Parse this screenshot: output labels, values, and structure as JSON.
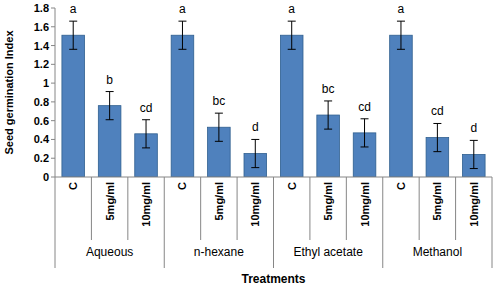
{
  "chart_data": {
    "type": "bar",
    "y_label": "Seed germination Index",
    "x_label": "Treatments",
    "categories": [
      "C",
      "5mg/ml",
      "10mg/ml",
      "C",
      "5mg/ml",
      "10mg/ml",
      "C",
      "5mg/ml",
      "10mg/ml",
      "C",
      "5mg/ml",
      "10mg/ml"
    ],
    "groups": [
      "Aqueous",
      "n-hexane",
      "Ethyl acetate",
      "Methanol"
    ],
    "values": [
      1.51,
      0.76,
      0.46,
      1.51,
      0.53,
      0.25,
      1.51,
      0.66,
      0.47,
      1.51,
      0.42,
      0.24
    ],
    "errors": [
      0.15,
      0.15,
      0.15,
      0.15,
      0.15,
      0.15,
      0.15,
      0.15,
      0.15,
      0.15,
      0.15,
      0.15
    ],
    "letters": [
      "a",
      "b",
      "cd",
      "a",
      "bc",
      "d",
      "a",
      "bc",
      "cd",
      "a",
      "cd",
      "d"
    ],
    "color": "#4F81BD",
    "ylim": [
      0,
      1.8
    ],
    "yticks": [
      0,
      0.2,
      0.4,
      0.6,
      0.8,
      1,
      1.2,
      1.4,
      1.6,
      1.8
    ],
    "grid": false
  }
}
